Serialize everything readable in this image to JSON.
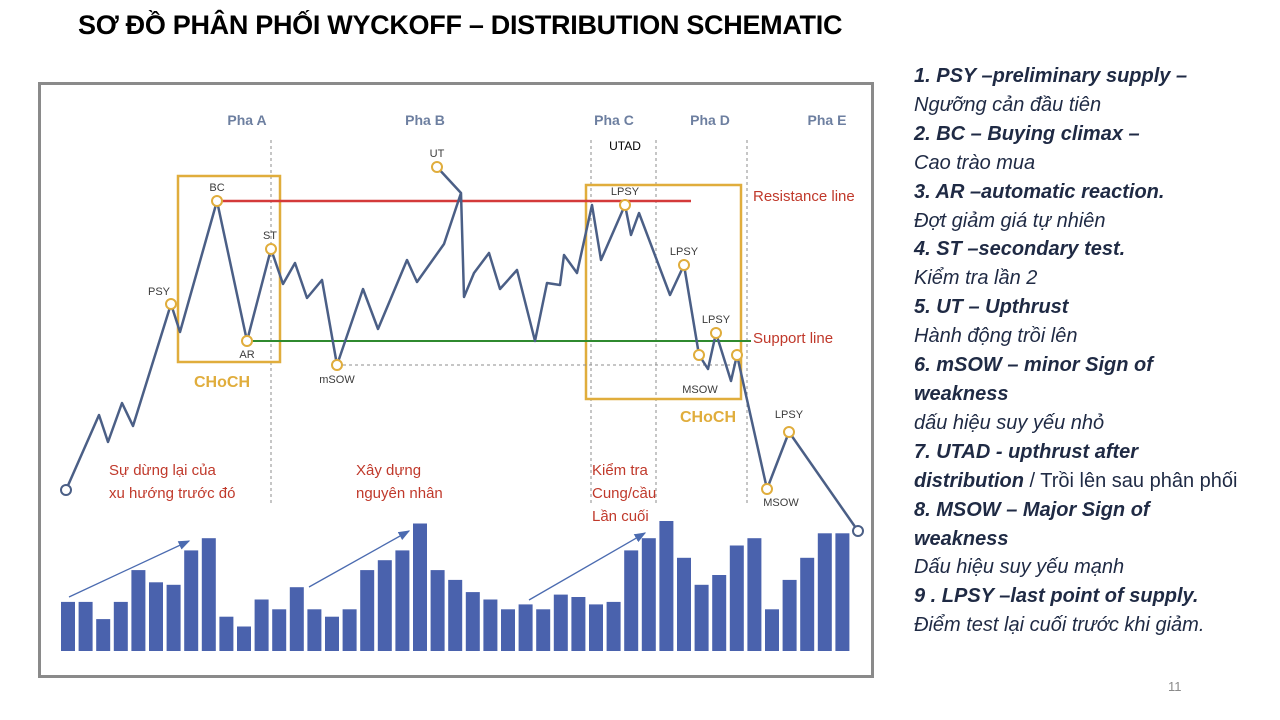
{
  "title": "SƠ ĐỒ PHÂN PHỐI WYCKOFF – DISTRIBUTION SCHEMATIC",
  "page_number": "11",
  "diagram": {
    "phases": [
      "Pha A",
      "Pha B",
      "Pha C",
      "Pha D",
      "Pha E"
    ],
    "lines": {
      "resistance": "Resistance line",
      "support": "Support line"
    },
    "boxes": {
      "choch_left": "CHoCH",
      "choch_right": "CHoCH"
    },
    "points": {
      "psy": "PSY",
      "bc": "BC",
      "ar": "AR",
      "st": "ST",
      "msow_small": "mSOW",
      "ut": "UT",
      "utad": "UTAD",
      "lpsy_1": "LPSY",
      "lpsy_2": "LPSY",
      "lpsy_3": "LPSY",
      "msow_1": "MSOW",
      "msow_2": "MSOW",
      "lpsy_4": "LPSY"
    },
    "annotations": {
      "a1_line1": "Sự dừng lại của",
      "a1_line2": "xu hướng trước đó",
      "a2_line1": "Xây dựng",
      "a2_line2": "nguyên nhân",
      "a3_line1": "Kiểm tra",
      "a3_line2": "Cung/cầu",
      "a3_line3": "Lần cuối"
    },
    "colors": {
      "price_line": "#4b5f86",
      "resistance": "#d43a3a",
      "support": "#2f8a2f",
      "box": "#e0ad3c",
      "volume_bar": "#4a62ad",
      "annotation_text": "#c0392b"
    }
  },
  "volume_bars": [
    20,
    20,
    13,
    20,
    33,
    28,
    27,
    41,
    46,
    14,
    10,
    21,
    17,
    26,
    17,
    14,
    17,
    33,
    37,
    41,
    52,
    33,
    29,
    24,
    21,
    17,
    19,
    17,
    23,
    22,
    19,
    20,
    41,
    46,
    53,
    38,
    27,
    31,
    43,
    46,
    17,
    29,
    38,
    48,
    48
  ],
  "legend": [
    {
      "term": "1. PSY –preliminary supply –",
      "desc": "Ngưỡng cản đầu tiên"
    },
    {
      "term": "2. BC – Buying climax –",
      "desc": "Cao trào mua"
    },
    {
      "term": "3. AR –automatic reaction.",
      "desc": "Đợt giảm giá tự nhiên"
    },
    {
      "term": "4. ST –secondary test.",
      "desc": "Kiểm tra lần 2"
    },
    {
      "term": "5. UT – Upthrust",
      "desc": "Hành động trồi lên"
    },
    {
      "term": "6. mSOW – minor Sign of",
      "term2": "weakness",
      "desc": "dấu hiệu suy yếu nhỏ"
    },
    {
      "term": "7. UTAD -  upthrust after",
      "term2": "distribution",
      "desc_inline": " / Trồi lên sau phân phối"
    },
    {
      "term": "8. MSOW – Major Sign of",
      "term2": "weakness",
      "desc": "Dấu hiệu suy yếu mạnh"
    },
    {
      "term": "9 . LPSY –last point of supply.",
      "desc": "Điểm test lại cuối trước khi giảm."
    }
  ]
}
